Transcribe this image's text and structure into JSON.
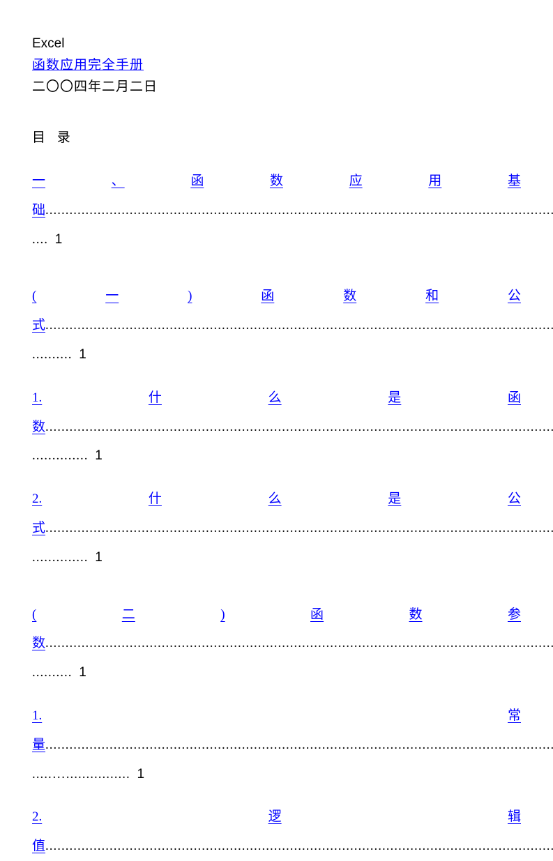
{
  "header": {
    "title": "Excel",
    "subtitle": "函数应用完全手册",
    "date": "二〇〇四年二月二日"
  },
  "toc": {
    "label": "目 录",
    "entries": [
      {
        "chars": [
          "一",
          "、",
          "函",
          "数",
          "应",
          "用",
          "基"
        ],
        "tail_char": "础",
        "dots1": "...........................................................................................................................................",
        "dots2": ".... ",
        "page": "1",
        "gap_before": false
      },
      {
        "chars": [
          "(",
          "一",
          ")",
          "函",
          "数",
          "和",
          "公"
        ],
        "tail_char": "式",
        "dots1": "...........................................................................................................................................",
        "dots2": ".......... ",
        "page": "1",
        "gap_before": true
      },
      {
        "chars": [
          "1.",
          "什",
          "么",
          "是",
          "函"
        ],
        "tail_char": "数",
        "dots1": ".....................................................................................................................................…...",
        "dots2": ".............. ",
        "page": "1",
        "gap_before": false
      },
      {
        "chars": [
          "2.",
          "什",
          "么",
          "是",
          "公"
        ],
        "tail_char": "式",
        "dots1": ".....................................................................................................................................…...",
        "dots2": ".............. ",
        "page": "1",
        "gap_before": false
      },
      {
        "chars": [
          "(",
          "二",
          ")",
          "函",
          "数",
          "参"
        ],
        "tail_char": "数",
        "dots1": "...........................................................................................................................................",
        "dots2": ".......... ",
        "page": "1",
        "gap_before": true
      },
      {
        "chars": [
          "1.",
          "常"
        ],
        "tail_char": "量",
        "dots1": "...........................................................................................................................................",
        "dots2": ".....…................ ",
        "page": "1",
        "gap_before": false
      },
      {
        "chars": [
          "2.",
          "逻",
          "辑"
        ],
        "tail_char": "值",
        "dots1": "...........................................................................................................................................",
        "dots2": "",
        "page": "",
        "gap_before": false
      }
    ]
  },
  "colors": {
    "link_color": "#0000ff",
    "text_color": "#000000",
    "background": "#ffffff"
  },
  "typography": {
    "body_fontsize": 19,
    "line_height": 2.2
  }
}
